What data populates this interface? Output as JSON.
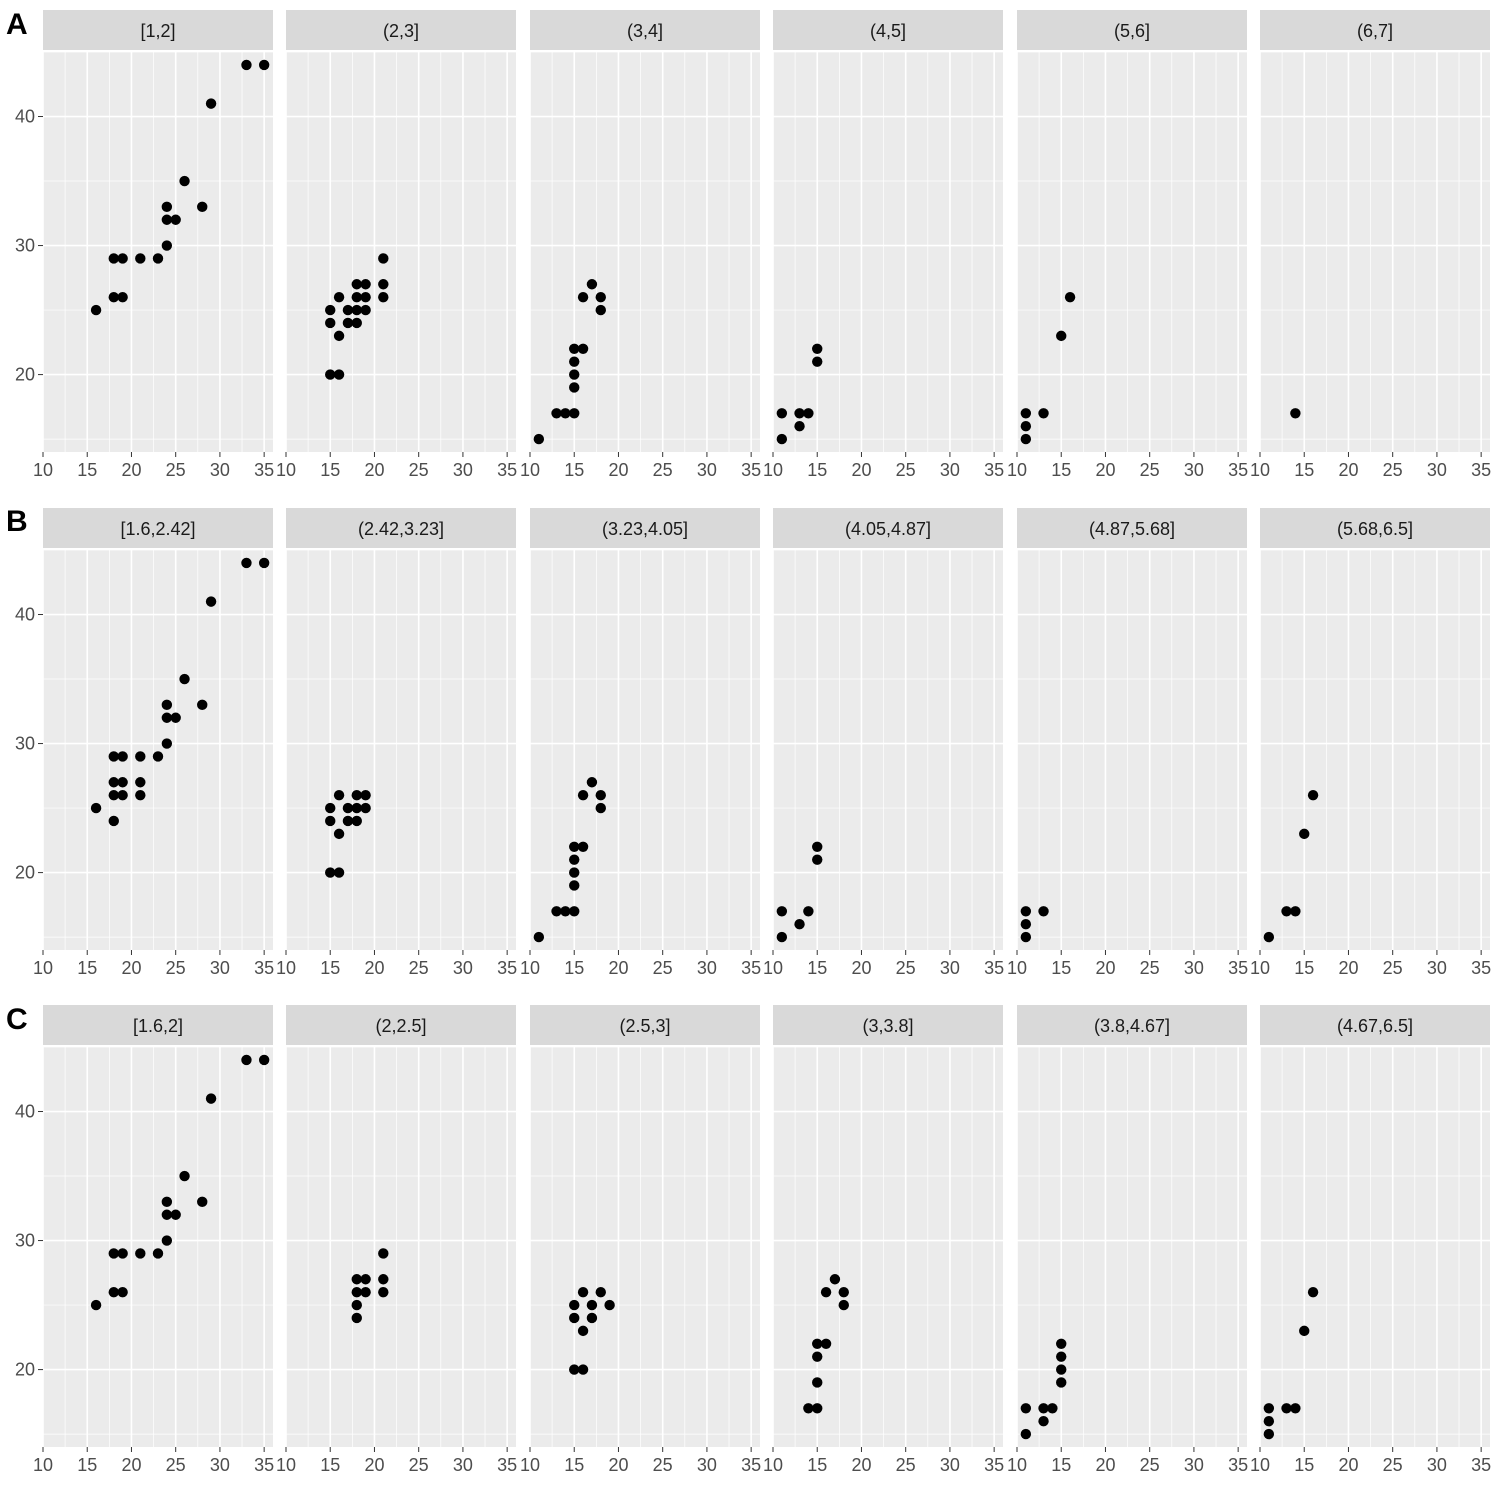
{
  "figure": {
    "colors": {
      "panel_background": "#ebebeb",
      "strip_background": "#d9d9d9",
      "grid": "#ffffff",
      "point": "#000000",
      "tick_text": "#4d4d4d",
      "strip_text": "#1a1a1a"
    }
  },
  "chart_data": [
    {
      "type": "scatter",
      "row_label": "A",
      "xlim": [
        10,
        36
      ],
      "ylim": [
        14,
        45
      ],
      "x_ticks": [
        10,
        15,
        20,
        25,
        30,
        35
      ],
      "y_ticks": [
        20,
        30,
        40
      ],
      "grid": true,
      "xlabel": "",
      "ylabel": "",
      "facets": [
        {
          "label": "[1,2]",
          "points": [
            [
              16,
              25
            ],
            [
              18,
              26
            ],
            [
              19,
              26
            ],
            [
              18,
              29
            ],
            [
              19,
              29
            ],
            [
              21,
              29
            ],
            [
              23,
              29
            ],
            [
              24,
              30
            ],
            [
              24,
              32
            ],
            [
              25,
              32
            ],
            [
              24,
              33
            ],
            [
              26,
              35
            ],
            [
              28,
              33
            ],
            [
              29,
              41
            ],
            [
              33,
              44
            ],
            [
              35,
              44
            ]
          ]
        },
        {
          "label": "(2,3]",
          "points": [
            [
              15,
              20
            ],
            [
              16,
              20
            ],
            [
              15,
              24
            ],
            [
              15,
              25
            ],
            [
              16,
              23
            ],
            [
              16,
              26
            ],
            [
              17,
              24
            ],
            [
              17,
              25
            ],
            [
              18,
              24
            ],
            [
              18,
              25
            ],
            [
              18,
              26
            ],
            [
              18,
              27
            ],
            [
              19,
              25
            ],
            [
              19,
              26
            ],
            [
              19,
              27
            ],
            [
              21,
              26
            ],
            [
              21,
              27
            ],
            [
              21,
              29
            ]
          ]
        },
        {
          "label": "(3,4]",
          "points": [
            [
              11,
              15
            ],
            [
              13,
              17
            ],
            [
              14,
              17
            ],
            [
              15,
              17
            ],
            [
              15,
              19
            ],
            [
              15,
              20
            ],
            [
              15,
              21
            ],
            [
              15,
              22
            ],
            [
              16,
              22
            ],
            [
              16,
              26
            ],
            [
              17,
              27
            ],
            [
              18,
              26
            ],
            [
              18,
              25
            ]
          ]
        },
        {
          "label": "(4,5]",
          "points": [
            [
              11,
              15
            ],
            [
              11,
              17
            ],
            [
              13,
              16
            ],
            [
              13,
              17
            ],
            [
              14,
              17
            ],
            [
              15,
              21
            ],
            [
              15,
              22
            ]
          ]
        },
        {
          "label": "(5,6]",
          "points": [
            [
              11,
              15
            ],
            [
              11,
              16
            ],
            [
              11,
              17
            ],
            [
              13,
              17
            ],
            [
              15,
              23
            ],
            [
              16,
              26
            ]
          ]
        },
        {
          "label": "(6,7]",
          "points": [
            [
              14,
              17
            ]
          ]
        }
      ]
    },
    {
      "type": "scatter",
      "row_label": "B",
      "xlim": [
        10,
        36
      ],
      "ylim": [
        14,
        45
      ],
      "x_ticks": [
        10,
        15,
        20,
        25,
        30,
        35
      ],
      "y_ticks": [
        20,
        30,
        40
      ],
      "grid": true,
      "xlabel": "",
      "ylabel": "",
      "facets": [
        {
          "label": "[1.6,2.42]",
          "points": [
            [
              16,
              25
            ],
            [
              18,
              24
            ],
            [
              18,
              26
            ],
            [
              18,
              27
            ],
            [
              18,
              29
            ],
            [
              19,
              26
            ],
            [
              19,
              27
            ],
            [
              19,
              29
            ],
            [
              21,
              26
            ],
            [
              21,
              27
            ],
            [
              21,
              29
            ],
            [
              23,
              29
            ],
            [
              24,
              30
            ],
            [
              24,
              32
            ],
            [
              25,
              32
            ],
            [
              24,
              33
            ],
            [
              26,
              35
            ],
            [
              28,
              33
            ],
            [
              29,
              41
            ],
            [
              33,
              44
            ],
            [
              35,
              44
            ]
          ]
        },
        {
          "label": "(2.42,3.23]",
          "points": [
            [
              15,
              20
            ],
            [
              16,
              20
            ],
            [
              15,
              24
            ],
            [
              15,
              25
            ],
            [
              16,
              23
            ],
            [
              16,
              26
            ],
            [
              17,
              24
            ],
            [
              17,
              25
            ],
            [
              18,
              24
            ],
            [
              18,
              25
            ],
            [
              18,
              26
            ],
            [
              19,
              25
            ],
            [
              19,
              26
            ]
          ]
        },
        {
          "label": "(3.23,4.05]",
          "points": [
            [
              11,
              15
            ],
            [
              13,
              17
            ],
            [
              14,
              17
            ],
            [
              15,
              17
            ],
            [
              15,
              19
            ],
            [
              15,
              20
            ],
            [
              15,
              21
            ],
            [
              15,
              22
            ],
            [
              16,
              22
            ],
            [
              16,
              26
            ],
            [
              17,
              27
            ],
            [
              18,
              26
            ],
            [
              18,
              25
            ]
          ]
        },
        {
          "label": "(4.05,4.87]",
          "points": [
            [
              11,
              15
            ],
            [
              11,
              17
            ],
            [
              13,
              16
            ],
            [
              14,
              17
            ],
            [
              15,
              21
            ],
            [
              15,
              22
            ]
          ]
        },
        {
          "label": "(4.87,5.68]",
          "points": [
            [
              11,
              15
            ],
            [
              11,
              16
            ],
            [
              11,
              17
            ],
            [
              13,
              17
            ]
          ]
        },
        {
          "label": "(5.68,6.5]",
          "points": [
            [
              11,
              15
            ],
            [
              13,
              17
            ],
            [
              14,
              17
            ],
            [
              15,
              23
            ],
            [
              16,
              26
            ]
          ]
        }
      ]
    },
    {
      "type": "scatter",
      "row_label": "C",
      "xlim": [
        10,
        36
      ],
      "ylim": [
        14,
        45
      ],
      "x_ticks": [
        10,
        15,
        20,
        25,
        30,
        35
      ],
      "y_ticks": [
        20,
        30,
        40
      ],
      "grid": true,
      "xlabel": "",
      "ylabel": "",
      "facets": [
        {
          "label": "[1.6,2]",
          "points": [
            [
              16,
              25
            ],
            [
              18,
              26
            ],
            [
              19,
              26
            ],
            [
              18,
              29
            ],
            [
              19,
              29
            ],
            [
              21,
              29
            ],
            [
              23,
              29
            ],
            [
              24,
              30
            ],
            [
              24,
              32
            ],
            [
              25,
              32
            ],
            [
              24,
              33
            ],
            [
              26,
              35
            ],
            [
              28,
              33
            ],
            [
              29,
              41
            ],
            [
              33,
              44
            ],
            [
              35,
              44
            ]
          ]
        },
        {
          "label": "(2,2.5]",
          "points": [
            [
              18,
              24
            ],
            [
              18,
              25
            ],
            [
              18,
              26
            ],
            [
              18,
              27
            ],
            [
              19,
              26
            ],
            [
              19,
              27
            ],
            [
              21,
              26
            ],
            [
              21,
              27
            ],
            [
              21,
              29
            ]
          ]
        },
        {
          "label": "(2.5,3]",
          "points": [
            [
              15,
              20
            ],
            [
              16,
              20
            ],
            [
              15,
              24
            ],
            [
              15,
              25
            ],
            [
              16,
              23
            ],
            [
              16,
              26
            ],
            [
              17,
              24
            ],
            [
              17,
              25
            ],
            [
              18,
              26
            ],
            [
              19,
              25
            ]
          ]
        },
        {
          "label": "(3,3.8]",
          "points": [
            [
              14,
              17
            ],
            [
              15,
              17
            ],
            [
              15,
              19
            ],
            [
              15,
              21
            ],
            [
              15,
              22
            ],
            [
              16,
              22
            ],
            [
              16,
              26
            ],
            [
              17,
              27
            ],
            [
              18,
              26
            ],
            [
              18,
              25
            ]
          ]
        },
        {
          "label": "(3.8,4.67]",
          "points": [
            [
              11,
              15
            ],
            [
              11,
              17
            ],
            [
              13,
              16
            ],
            [
              13,
              17
            ],
            [
              14,
              17
            ],
            [
              15,
              19
            ],
            [
              15,
              20
            ],
            [
              15,
              21
            ],
            [
              15,
              22
            ]
          ]
        },
        {
          "label": "(4.67,6.5]",
          "points": [
            [
              11,
              15
            ],
            [
              11,
              16
            ],
            [
              11,
              17
            ],
            [
              13,
              17
            ],
            [
              14,
              17
            ],
            [
              15,
              23
            ],
            [
              16,
              26
            ]
          ]
        }
      ]
    }
  ]
}
